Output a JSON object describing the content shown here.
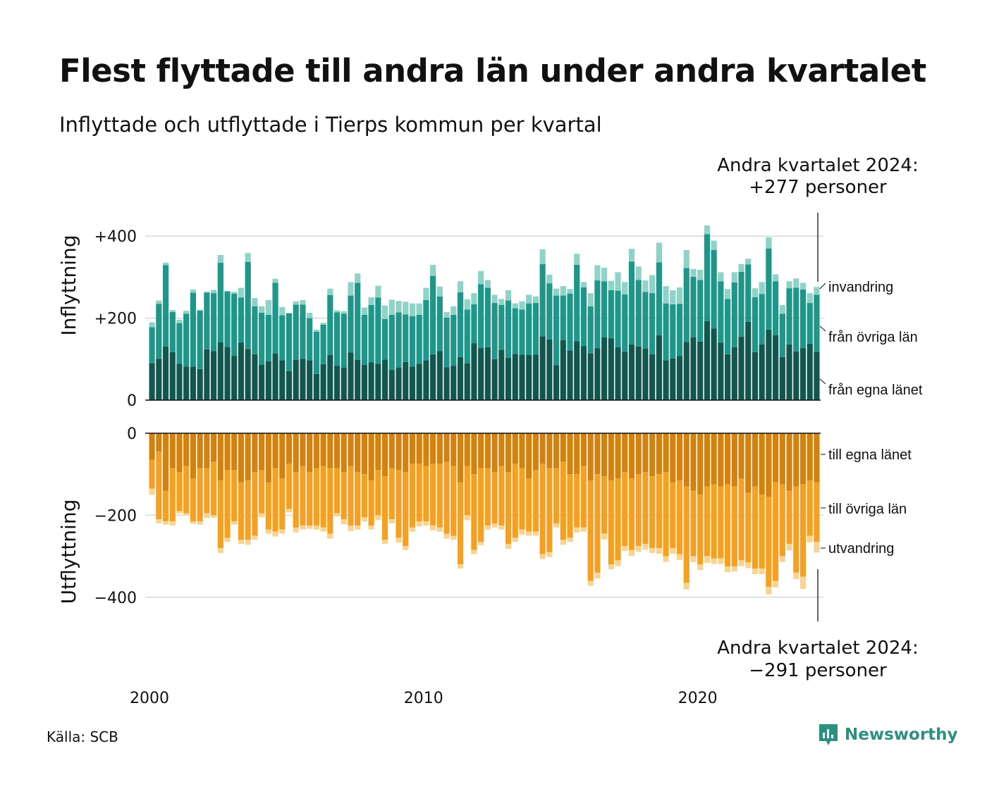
{
  "title": "Flest flyttade till andra län under andra kvartalet",
  "subtitle": "Inflyttade och utflyttade i Tierps kommun per kvartal",
  "source": "Källa: SCB",
  "logo_text": "Newsworthy",
  "colors": {
    "in_egna": "#12574f",
    "in_ovriga": "#1f968a",
    "in_invandring": "#8fd3c8",
    "ut_egna": "#d4820e",
    "ut_ovriga": "#f5a020",
    "ut_utvandring": "#f8d493",
    "logo": "#2f8f7f"
  },
  "chart_data": [
    {
      "type": "bar",
      "stacked": true,
      "ylabel": "Inflyttning",
      "ylim": [
        0,
        460
      ],
      "yticks": [
        0,
        200,
        400
      ],
      "ytick_labels": [
        "0",
        "+200",
        "+400"
      ],
      "grid": true,
      "series": [
        {
          "name": "från egna länet",
          "values": [
            90,
            101,
            131,
            117,
            89,
            82,
            82,
            76,
            124,
            120,
            141,
            130,
            108,
            140,
            125,
            112,
            86,
            95,
            114,
            97,
            71,
            98,
            101,
            97,
            64,
            88,
            110,
            84,
            79,
            116,
            98,
            86,
            92,
            89,
            99,
            73,
            79,
            93,
            82,
            89,
            97,
            112,
            120,
            80,
            84,
            105,
            90,
            139,
            127,
            129,
            100,
            122,
            103,
            113,
            111,
            110,
            111,
            156,
            148,
            85,
            146,
            121,
            144,
            132,
            114,
            127,
            153,
            151,
            129,
            118,
            136,
            131,
            126,
            112,
            158,
            97,
            102,
            108,
            142,
            153,
            143,
            193,
            175,
            140,
            112,
            129,
            155,
            191,
            117,
            136,
            172,
            158,
            105,
            136,
            119,
            127,
            138,
            118
          ],
          "mid": [
            88,
            134,
            198,
            98,
            99,
            129,
            180,
            142,
            138,
            141,
            194,
            135,
            152,
            110,
            212,
            117,
            127,
            113,
            172,
            110,
            141,
            135,
            132,
            103,
            103,
            96,
            146,
            130,
            132,
            139,
            188,
            122,
            140,
            161,
            99,
            135,
            135,
            116,
            123,
            119,
            147,
            191,
            133,
            121,
            124,
            158,
            131,
            95,
            156,
            145,
            137,
            110,
            140,
            111,
            110,
            126,
            126,
            176,
            137,
            170,
            109,
            139,
            186,
            143,
            115,
            165,
            137,
            117,
            138,
            140,
            202,
            162,
            138,
            149,
            178,
            139,
            132,
            127,
            180,
            148,
            150,
            212,
            191,
            150,
            135,
            158,
            158,
            140,
            134,
            123,
            198,
            132,
            106,
            137,
            155,
            143,
            99,
            139
          ]
        },
        {
          "name": "från övriga län",
          "values": [
            88,
            134,
            198,
            98,
            99,
            129,
            180,
            142,
            138,
            141,
            194,
            135,
            152,
            110,
            212,
            117,
            127,
            113,
            172,
            110,
            141,
            135,
            132,
            103,
            103,
            96,
            146,
            130,
            132,
            139,
            188,
            122,
            140,
            161,
            99,
            135,
            135,
            116,
            123,
            119,
            147,
            191,
            133,
            121,
            124,
            158,
            131,
            95,
            156,
            145,
            137,
            110,
            140,
            111,
            110,
            126,
            126,
            176,
            137,
            170,
            109,
            139,
            186,
            143,
            115,
            165,
            137,
            117,
            138,
            140,
            202,
            162,
            138,
            149,
            178,
            139,
            132,
            127,
            180,
            148,
            150,
            212,
            191,
            150,
            135,
            158,
            158,
            140,
            134,
            123,
            198,
            132,
            106,
            137,
            155,
            143,
            99,
            139
          ]
        },
        {
          "name": "invandring",
          "values": [
            12,
            8,
            6,
            5,
            8,
            7,
            8,
            3,
            3,
            8,
            19,
            2,
            4,
            24,
            22,
            20,
            16,
            36,
            10,
            20,
            0,
            8,
            11,
            13,
            5,
            5,
            16,
            5,
            6,
            33,
            23,
            18,
            19,
            29,
            33,
            37,
            28,
            31,
            31,
            28,
            30,
            27,
            24,
            14,
            21,
            27,
            25,
            27,
            32,
            19,
            20,
            15,
            25,
            12,
            20,
            21,
            16,
            36,
            21,
            17,
            23,
            11,
            27,
            13,
            32,
            37,
            33,
            23,
            45,
            30,
            31,
            33,
            28,
            44,
            48,
            42,
            34,
            40,
            44,
            19,
            25,
            21,
            23,
            22,
            24,
            25,
            19,
            14,
            22,
            29,
            27,
            17,
            21,
            17,
            23,
            16,
            24,
            19
          ]
        }
      ],
      "x_tick_labels": [
        "2000",
        "2010",
        "2020"
      ],
      "x_tick_years": [
        2000,
        2010,
        2020
      ],
      "x_start_year": 2000,
      "x_end": "2024 Q2",
      "series_labels": [
        "invandring",
        "från övriga län",
        "från egna länet"
      ],
      "annotation": [
        "Andra kvartalet 2024:",
        "+277 personer"
      ]
    },
    {
      "type": "bar",
      "stacked": true,
      "ylabel": "Utflyttning",
      "ylim": [
        -460,
        0
      ],
      "yticks": [
        0,
        -200,
        -400
      ],
      "ytick_labels": [
        "0",
        "−200",
        "−400"
      ],
      "grid": true,
      "series": [
        {
          "name": "till egna länet",
          "values": [
            -65,
            -45,
            -140,
            -85,
            -95,
            -80,
            -110,
            -85,
            -85,
            -70,
            -115,
            -90,
            -90,
            -120,
            -115,
            -95,
            -90,
            -120,
            -85,
            -110,
            -75,
            -95,
            -80,
            -95,
            -85,
            -80,
            -85,
            -85,
            -95,
            -80,
            -95,
            -100,
            -115,
            -90,
            -105,
            -85,
            -90,
            -95,
            -75,
            -75,
            -80,
            -75,
            -75,
            -70,
            -80,
            -120,
            -80,
            -100,
            -85,
            -85,
            -95,
            -80,
            -95,
            -75,
            -85,
            -110,
            -90,
            -75,
            -85,
            -85,
            -70,
            -100,
            -100,
            -80,
            -115,
            -100,
            -105,
            -115,
            -110,
            -95,
            -110,
            -100,
            -95,
            -105,
            -100,
            -95,
            -120,
            -115,
            -130,
            -140,
            -150,
            -130,
            -125,
            -130,
            -125,
            -130,
            -110,
            -145,
            -130,
            -150,
            -155,
            -120,
            -125,
            -140,
            -130,
            -125,
            -115,
            -120
          ],
          "mid": [
            -70,
            -165,
            -75,
            -130,
            -95,
            -115,
            -105,
            -130,
            -110,
            -130,
            -165,
            -165,
            -125,
            -140,
            -145,
            -155,
            -105,
            -115,
            -155,
            -125,
            -110,
            -135,
            -145,
            -130,
            -140,
            -150,
            -160,
            -110,
            -115,
            -145,
            -130,
            -105,
            -110,
            -110,
            -155,
            -125,
            -165,
            -180,
            -155,
            -140,
            -135,
            -150,
            -155,
            -175,
            -170,
            -200,
            -120,
            -185,
            -180,
            -140,
            -125,
            -145,
            -175,
            -180,
            -150,
            -130,
            -150,
            -220,
            -205,
            -135,
            -190,
            -155,
            -130,
            -150,
            -245,
            -240,
            -140,
            -205,
            -200,
            -180,
            -175,
            -175,
            -175,
            -175,
            -180,
            -205,
            -160,
            -180,
            -235,
            -160,
            -170,
            -170,
            -180,
            -175,
            -200,
            -195,
            -200,
            -170,
            -200,
            -180,
            -220,
            -240,
            -175,
            -130,
            -210,
            -225,
            -135,
            -145
          ]
        },
        {
          "name": "till övriga län",
          "values": [
            -70,
            -165,
            -75,
            -130,
            -95,
            -115,
            -105,
            -130,
            -110,
            -130,
            -165,
            -165,
            -125,
            -140,
            -145,
            -155,
            -105,
            -115,
            -155,
            -125,
            -110,
            -135,
            -145,
            -130,
            -140,
            -150,
            -160,
            -110,
            -115,
            -145,
            -130,
            -105,
            -110,
            -110,
            -155,
            -125,
            -165,
            -180,
            -155,
            -140,
            -135,
            -150,
            -155,
            -175,
            -170,
            -200,
            -120,
            -185,
            -180,
            -140,
            -125,
            -145,
            -175,
            -180,
            -150,
            -130,
            -150,
            -220,
            -205,
            -135,
            -190,
            -155,
            -130,
            -150,
            -245,
            -240,
            -140,
            -205,
            -200,
            -180,
            -175,
            -175,
            -175,
            -175,
            -180,
            -205,
            -160,
            -180,
            -235,
            -160,
            -170,
            -170,
            -180,
            -175,
            -200,
            -195,
            -200,
            -170,
            -200,
            -180,
            -220,
            -240,
            -175,
            -130,
            -210,
            -225,
            -135,
            -145
          ]
        },
        {
          "name": "utvandring",
          "values": [
            -15,
            -10,
            -8,
            -10,
            -6,
            -6,
            -6,
            -8,
            -12,
            -6,
            -12,
            -10,
            -8,
            -10,
            -12,
            -10,
            -10,
            -10,
            -12,
            -10,
            -8,
            -12,
            -10,
            -8,
            -10,
            -10,
            -12,
            -8,
            -12,
            -14,
            -10,
            -10,
            -10,
            -12,
            -10,
            -10,
            -12,
            -10,
            -10,
            -12,
            -10,
            -12,
            -10,
            -12,
            -10,
            -10,
            -12,
            -10,
            -8,
            -10,
            -10,
            -10,
            -12,
            -10,
            -12,
            -10,
            -10,
            -12,
            -12,
            -10,
            -12,
            -10,
            -12,
            -10,
            -12,
            -14,
            -14,
            -12,
            -14,
            -12,
            -14,
            -14,
            -14,
            -12,
            -14,
            -14,
            -14,
            -14,
            -16,
            -14,
            -14,
            -16,
            -14,
            -14,
            -14,
            -12,
            -14,
            -14,
            -14,
            -14,
            -18,
            -16,
            -14,
            -16,
            -16,
            -30,
            -16,
            -26
          ]
        }
      ],
      "series_labels": [
        "till egna länet",
        "till övriga län",
        "utvandring"
      ],
      "annotation": [
        "Andra kvartalet 2024:",
        "−291 personer"
      ]
    }
  ]
}
